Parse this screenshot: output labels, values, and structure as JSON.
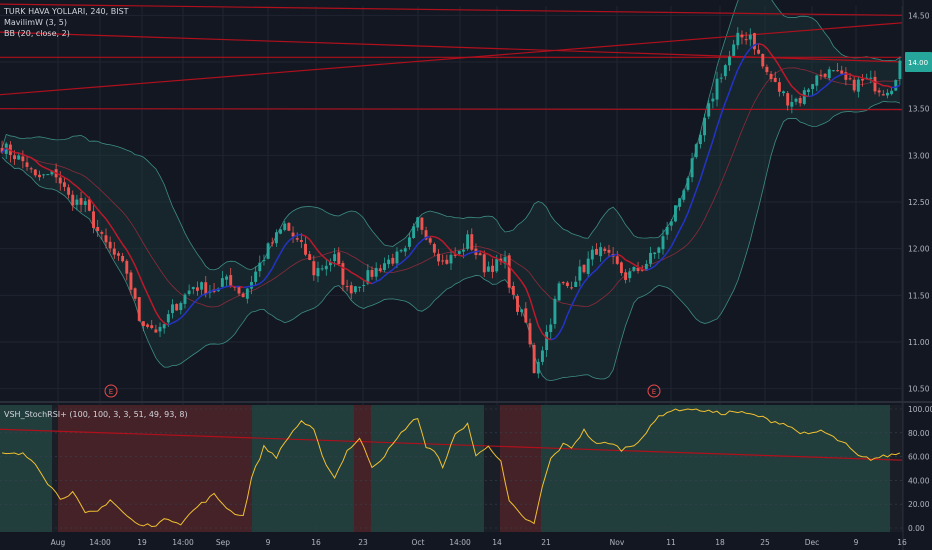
{
  "legend": {
    "symbol": "TURK HAVA YOLLARI, 240, BIST",
    "indicator1": "MavilimW (3, 5)",
    "indicator2": "BB (20, close, 2)"
  },
  "stoch_legend": "VSH_StochRSI+ (100, 100, 3, 3, 51, 49, 93, 8)",
  "earnings_marker": "E",
  "colors": {
    "background": "#131722",
    "grid": "#1f2430",
    "up": "#26a69a",
    "down": "#ef5350",
    "bb_band": "#3d8c85",
    "bb_fill": "#1c3a3a",
    "bb_basis": "#8b2a3a",
    "mavilim": "#2433c8",
    "mavilim_red": "#c0182b",
    "trendline": "#b0101c",
    "stoch_line": "#f0c030",
    "stoch_bg_green": "#23413f",
    "stoch_bg_red": "#4a2428",
    "stoch_bg_dark": "#1c1f28",
    "last_price_badge": "#26a69a"
  },
  "chart_data": [
    {
      "type": "candlestick",
      "title": "TURK HAVA YOLLARI, 240, BIST",
      "ylim": [
        10.4,
        14.6
      ],
      "y_ticks": [
        "14.50",
        "14.00",
        "13.50",
        "13.00",
        "12.50",
        "12.00",
        "11.50",
        "11.00",
        "10.50"
      ],
      "last_price": "14.00",
      "x_ticks": [
        "Aug",
        "14:00",
        "19",
        "14:00",
        "Sep",
        "9",
        "16",
        "23",
        "Oct",
        "14:00",
        "14",
        "21",
        "Nov",
        "11",
        "18",
        "25",
        "Dec",
        "9",
        "16"
      ],
      "series": [
        {
          "name": "MavilimW (3, 5)"
        },
        {
          "name": "BB (20, close, 2)"
        }
      ],
      "price_waypoints": [
        [
          0,
          13.1
        ],
        [
          6,
          12.9
        ],
        [
          8,
          12.75
        ],
        [
          13,
          12.8
        ],
        [
          16,
          12.55
        ],
        [
          20,
          12.45
        ],
        [
          24,
          12.1
        ],
        [
          30,
          11.75
        ],
        [
          33,
          11.25
        ],
        [
          38,
          11.1
        ],
        [
          41,
          11.35
        ],
        [
          46,
          11.6
        ],
        [
          52,
          11.55
        ],
        [
          54,
          11.7
        ],
        [
          58,
          11.5
        ],
        [
          64,
          12.0
        ],
        [
          68,
          12.25
        ],
        [
          73,
          11.95
        ],
        [
          75,
          11.75
        ],
        [
          80,
          11.9
        ],
        [
          83,
          11.55
        ],
        [
          88,
          11.7
        ],
        [
          92,
          11.85
        ],
        [
          97,
          11.95
        ],
        [
          100,
          12.3
        ],
        [
          103,
          12.1
        ],
        [
          106,
          11.85
        ],
        [
          110,
          11.95
        ],
        [
          112,
          12.1
        ],
        [
          116,
          11.8
        ],
        [
          121,
          11.85
        ],
        [
          123,
          11.45
        ],
        [
          126,
          11.2
        ],
        [
          128,
          10.7
        ],
        [
          130,
          10.95
        ],
        [
          132,
          11.25
        ],
        [
          134,
          11.6
        ],
        [
          136,
          11.6
        ],
        [
          140,
          11.8
        ],
        [
          143,
          12.0
        ],
        [
          147,
          11.85
        ],
        [
          150,
          11.7
        ],
        [
          154,
          11.8
        ],
        [
          157,
          11.95
        ],
        [
          160,
          12.2
        ],
        [
          163,
          12.55
        ],
        [
          166,
          12.9
        ],
        [
          169,
          13.35
        ],
        [
          172,
          13.8
        ],
        [
          175,
          14.05
        ],
        [
          177,
          14.25
        ],
        [
          180,
          14.3
        ],
        [
          183,
          13.95
        ],
        [
          186,
          13.75
        ],
        [
          189,
          13.6
        ],
        [
          192,
          13.6
        ],
        [
          195,
          13.8
        ],
        [
          198,
          13.9
        ],
        [
          201,
          13.85
        ],
        [
          204,
          13.75
        ],
        [
          208,
          13.8
        ],
        [
          212,
          13.7
        ],
        [
          214,
          13.75
        ],
        [
          216,
          14.0
        ]
      ]
    },
    {
      "type": "line",
      "title": "VSH_StochRSI+ (100, 100, 3, 3, 51, 49, 93, 8)",
      "ylim": [
        0,
        100
      ],
      "y_ticks": [
        "100.00",
        "80.00",
        "60.00",
        "40.00",
        "20.00",
        "0.00"
      ],
      "stoch_waypoints": [
        [
          0,
          62
        ],
        [
          5,
          62
        ],
        [
          8,
          55
        ],
        [
          11,
          38
        ],
        [
          14,
          25
        ],
        [
          17,
          30
        ],
        [
          20,
          12
        ],
        [
          23,
          14
        ],
        [
          26,
          24
        ],
        [
          30,
          10
        ],
        [
          33,
          2
        ],
        [
          37,
          3
        ],
        [
          40,
          8
        ],
        [
          43,
          4
        ],
        [
          47,
          18
        ],
        [
          51,
          28
        ],
        [
          55,
          14
        ],
        [
          58,
          10
        ],
        [
          60,
          42
        ],
        [
          63,
          68
        ],
        [
          66,
          60
        ],
        [
          69,
          77
        ],
        [
          72,
          90
        ],
        [
          75,
          82
        ],
        [
          77,
          60
        ],
        [
          80,
          42
        ],
        [
          83,
          65
        ],
        [
          86,
          75
        ],
        [
          89,
          52
        ],
        [
          91,
          57
        ],
        [
          94,
          70
        ],
        [
          97,
          84
        ],
        [
          100,
          93
        ],
        [
          102,
          68
        ],
        [
          104,
          64
        ],
        [
          106,
          52
        ],
        [
          109,
          78
        ],
        [
          112,
          88
        ],
        [
          114,
          60
        ],
        [
          117,
          70
        ],
        [
          120,
          55
        ],
        [
          122,
          22
        ],
        [
          125,
          10
        ],
        [
          128,
          3
        ],
        [
          130,
          35
        ],
        [
          132,
          58
        ],
        [
          135,
          70
        ],
        [
          137,
          68
        ],
        [
          140,
          82
        ],
        [
          143,
          70
        ],
        [
          146,
          72
        ],
        [
          149,
          66
        ],
        [
          152,
          70
        ],
        [
          155,
          80
        ],
        [
          158,
          94
        ],
        [
          161,
          99
        ],
        [
          164,
          100
        ],
        [
          167,
          100
        ],
        [
          170,
          98
        ],
        [
          173,
          96
        ],
        [
          176,
          98
        ],
        [
          179,
          96
        ],
        [
          182,
          94
        ],
        [
          185,
          90
        ],
        [
          188,
          88
        ],
        [
          191,
          82
        ],
        [
          194,
          78
        ],
        [
          197,
          82
        ],
        [
          200,
          76
        ],
        [
          203,
          70
        ],
        [
          206,
          60
        ],
        [
          209,
          58
        ],
        [
          212,
          60
        ],
        [
          216,
          63
        ]
      ],
      "trendline": [
        [
          0,
          83
        ],
        [
          216,
          57
        ]
      ]
    }
  ]
}
